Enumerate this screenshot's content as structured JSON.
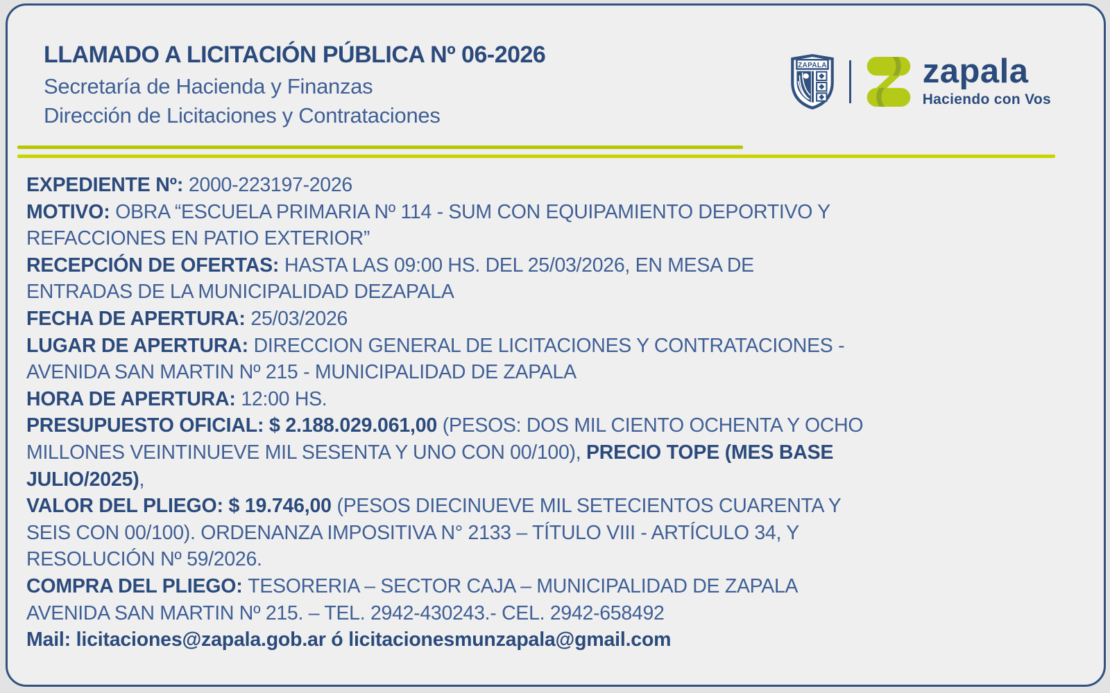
{
  "colors": {
    "page_bg": "#e3e3e3",
    "card_bg": "#efefef",
    "border": "#31517f",
    "navy_dark": "#2b4a7c",
    "navy_body": "#3f5f95",
    "lime_1": "#b6c701",
    "lime_2": "#c9d501",
    "logo_green": "#b5ca18",
    "logo_green_dark": "#93a823"
  },
  "header": {
    "title": "LLAMADO A LICITACIÓN PÚBLICA Nº 06-2026",
    "subtitle1": "Secretaría de Hacienda y Finanzas",
    "subtitle2": "Dirección de Licitaciones y Contrataciones"
  },
  "logo": {
    "shield_text": "ZAPALA",
    "wordmark": "zapala",
    "tagline": "Haciendo con Vos"
  },
  "body": {
    "lines": [
      [
        {
          "t": "EXPEDIENTE Nº: ",
          "b": true
        },
        {
          "t": "2000-223197-2026",
          "b": false
        }
      ],
      [
        {
          "t": "MOTIVO: ",
          "b": true
        },
        {
          "t": "OBRA “ESCUELA PRIMARIA Nº 114 - SUM CON EQUIPAMIENTO DEPORTIVO Y",
          "b": false
        }
      ],
      [
        {
          "t": "REFACCIONES EN PATIO EXTERIOR”",
          "b": false
        }
      ],
      [
        {
          "t": "RECEPCIÓN DE OFERTAS: ",
          "b": true
        },
        {
          "t": "HASTA LAS 09:00 HS. DEL 25/03/2026, EN MESA DE",
          "b": false
        }
      ],
      [
        {
          "t": "ENTRADAS DE LA MUNICIPALIDAD DEZAPALA",
          "b": false
        }
      ],
      [
        {
          "t": "FECHA DE APERTURA: ",
          "b": true
        },
        {
          "t": "25/03/2026",
          "b": false
        }
      ],
      [
        {
          "t": "LUGAR DE APERTURA: ",
          "b": true
        },
        {
          "t": "DIRECCION GENERAL DE LICITACIONES Y CONTRATACIONES -",
          "b": false
        }
      ],
      [
        {
          "t": "AVENIDA SAN MARTIN Nº 215 - MUNICIPALIDAD DE ZAPALA",
          "b": false
        }
      ],
      [
        {
          "t": "HORA DE APERTURA: ",
          "b": true
        },
        {
          "t": "12:00 HS.",
          "b": false
        }
      ],
      [
        {
          "t": "PRESUPUESTO OFICIAL: $ 2.188.029.061,00 ",
          "b": true
        },
        {
          "t": "(PESOS: DOS MIL CIENTO OCHENTA Y OCHO",
          "b": false
        }
      ],
      [
        {
          "t": "MILLONES VEINTINUEVE MIL SESENTA Y UNO CON 00/100), ",
          "b": false
        },
        {
          "t": "PRECIO TOPE (MES BASE",
          "b": true
        }
      ],
      [
        {
          "t": "JULIO/2025)",
          "b": true
        },
        {
          "t": ",",
          "b": false
        }
      ],
      [
        {
          "t": "VALOR DEL PLIEGO: $ 19.746,00 ",
          "b": true
        },
        {
          "t": "(PESOS DIECINUEVE MIL SETECIENTOS CUARENTA Y",
          "b": false
        }
      ],
      [
        {
          "t": "SEIS CON 00/100). ORDENANZA IMPOSITIVA N° 2133 – TÍTULO VIII - ARTÍCULO 34, Y",
          "b": false
        }
      ],
      [
        {
          "t": "RESOLUCIÓN Nº 59/2026.",
          "b": false
        }
      ],
      [
        {
          "t": "COMPRA DEL PLIEGO: ",
          "b": true
        },
        {
          "t": "TESORERIA – SECTOR CAJA – MUNICIPALIDAD DE ZAPALA",
          "b": false
        }
      ],
      [
        {
          "t": "AVENIDA SAN MARTIN Nº 215. – TEL. 2942-430243.- CEL. 2942-658492",
          "b": false
        }
      ],
      [
        {
          "t": "Mail: licitaciones@zapala.gob.ar ó licitacionesmunzapala@gmail.com",
          "b": true
        }
      ]
    ]
  }
}
